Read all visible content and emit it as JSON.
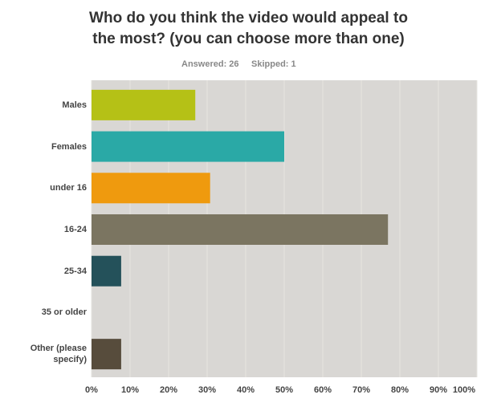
{
  "chart_data": {
    "type": "bar",
    "orientation": "horizontal",
    "title": [
      "Who do you think the video would appeal to",
      "the most? (you can choose more than one)"
    ],
    "answered": "Answered: 26",
    "skipped": "Skipped: 1",
    "categories": [
      "Males",
      "Females",
      "under 16",
      "16-24",
      "25-34",
      "35 or older",
      "Other (please specify)"
    ],
    "values": [
      26.92,
      50,
      30.77,
      76.92,
      7.69,
      0,
      7.69
    ],
    "colors": [
      "#b5c116",
      "#2aa9a6",
      "#ef9a0e",
      "#7b7561",
      "#24515a",
      "#24515a",
      "#574c3c"
    ],
    "xlim": [
      0,
      100
    ],
    "xticks": [
      {
        "value": 0,
        "label": "0%"
      },
      {
        "value": 10,
        "label": "10%"
      },
      {
        "value": 20,
        "label": "20%"
      },
      {
        "value": 30,
        "label": "30%"
      },
      {
        "value": 40,
        "label": "40%"
      },
      {
        "value": 50,
        "label": "50%"
      },
      {
        "value": 60,
        "label": "60%"
      },
      {
        "value": 70,
        "label": "70%"
      },
      {
        "value": 80,
        "label": "80%"
      },
      {
        "value": 90,
        "label": "90%"
      },
      {
        "value": 100,
        "label": "100%"
      }
    ],
    "grid": true
  }
}
